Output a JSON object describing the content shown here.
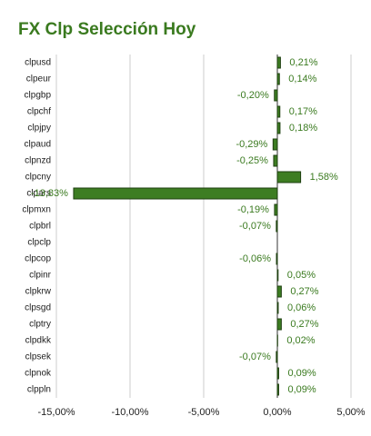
{
  "chart_data": {
    "type": "hbar",
    "title": "FX Clp Selección Hoy",
    "categories": [
      "clpusd",
      "clpeur",
      "clpgbp",
      "clpchf",
      "clpjpy",
      "clpaud",
      "clpnzd",
      "clpcny",
      "clpars",
      "clpmxn",
      "clpbrl",
      "clpclp",
      "clpcop",
      "clpinr",
      "clpkrw",
      "clpsgd",
      "clptry",
      "clpdkk",
      "clpsek",
      "clpnok",
      "clppln"
    ],
    "values": [
      0.21,
      0.14,
      -0.2,
      0.17,
      0.18,
      -0.29,
      -0.25,
      1.58,
      -13.83,
      -0.19,
      -0.07,
      null,
      -0.06,
      0.05,
      0.27,
      0.06,
      0.27,
      0.02,
      -0.07,
      0.09,
      0.09
    ],
    "value_labels": [
      "0,21%",
      "0,14%",
      "-0,20%",
      "0,17%",
      "0,18%",
      "-0,29%",
      "-0,25%",
      "1,58%",
      "-13,83%",
      "-0,19%",
      "-0,07%",
      null,
      "-0,06%",
      "0,05%",
      "0,27%",
      "0,06%",
      "0,27%",
      "0,02%",
      "-0,07%",
      "0,09%",
      "0,09%"
    ],
    "color": "#3d7d22",
    "xlim": [
      -15,
      5
    ],
    "xticks": [
      {
        "value": -15,
        "label": "-15,00%"
      },
      {
        "value": -10,
        "label": "-10,00%"
      },
      {
        "value": -5,
        "label": "-5,00%"
      },
      {
        "value": 0,
        "label": "0,00%"
      },
      {
        "value": 5,
        "label": "5,00%"
      }
    ],
    "grid": true
  }
}
